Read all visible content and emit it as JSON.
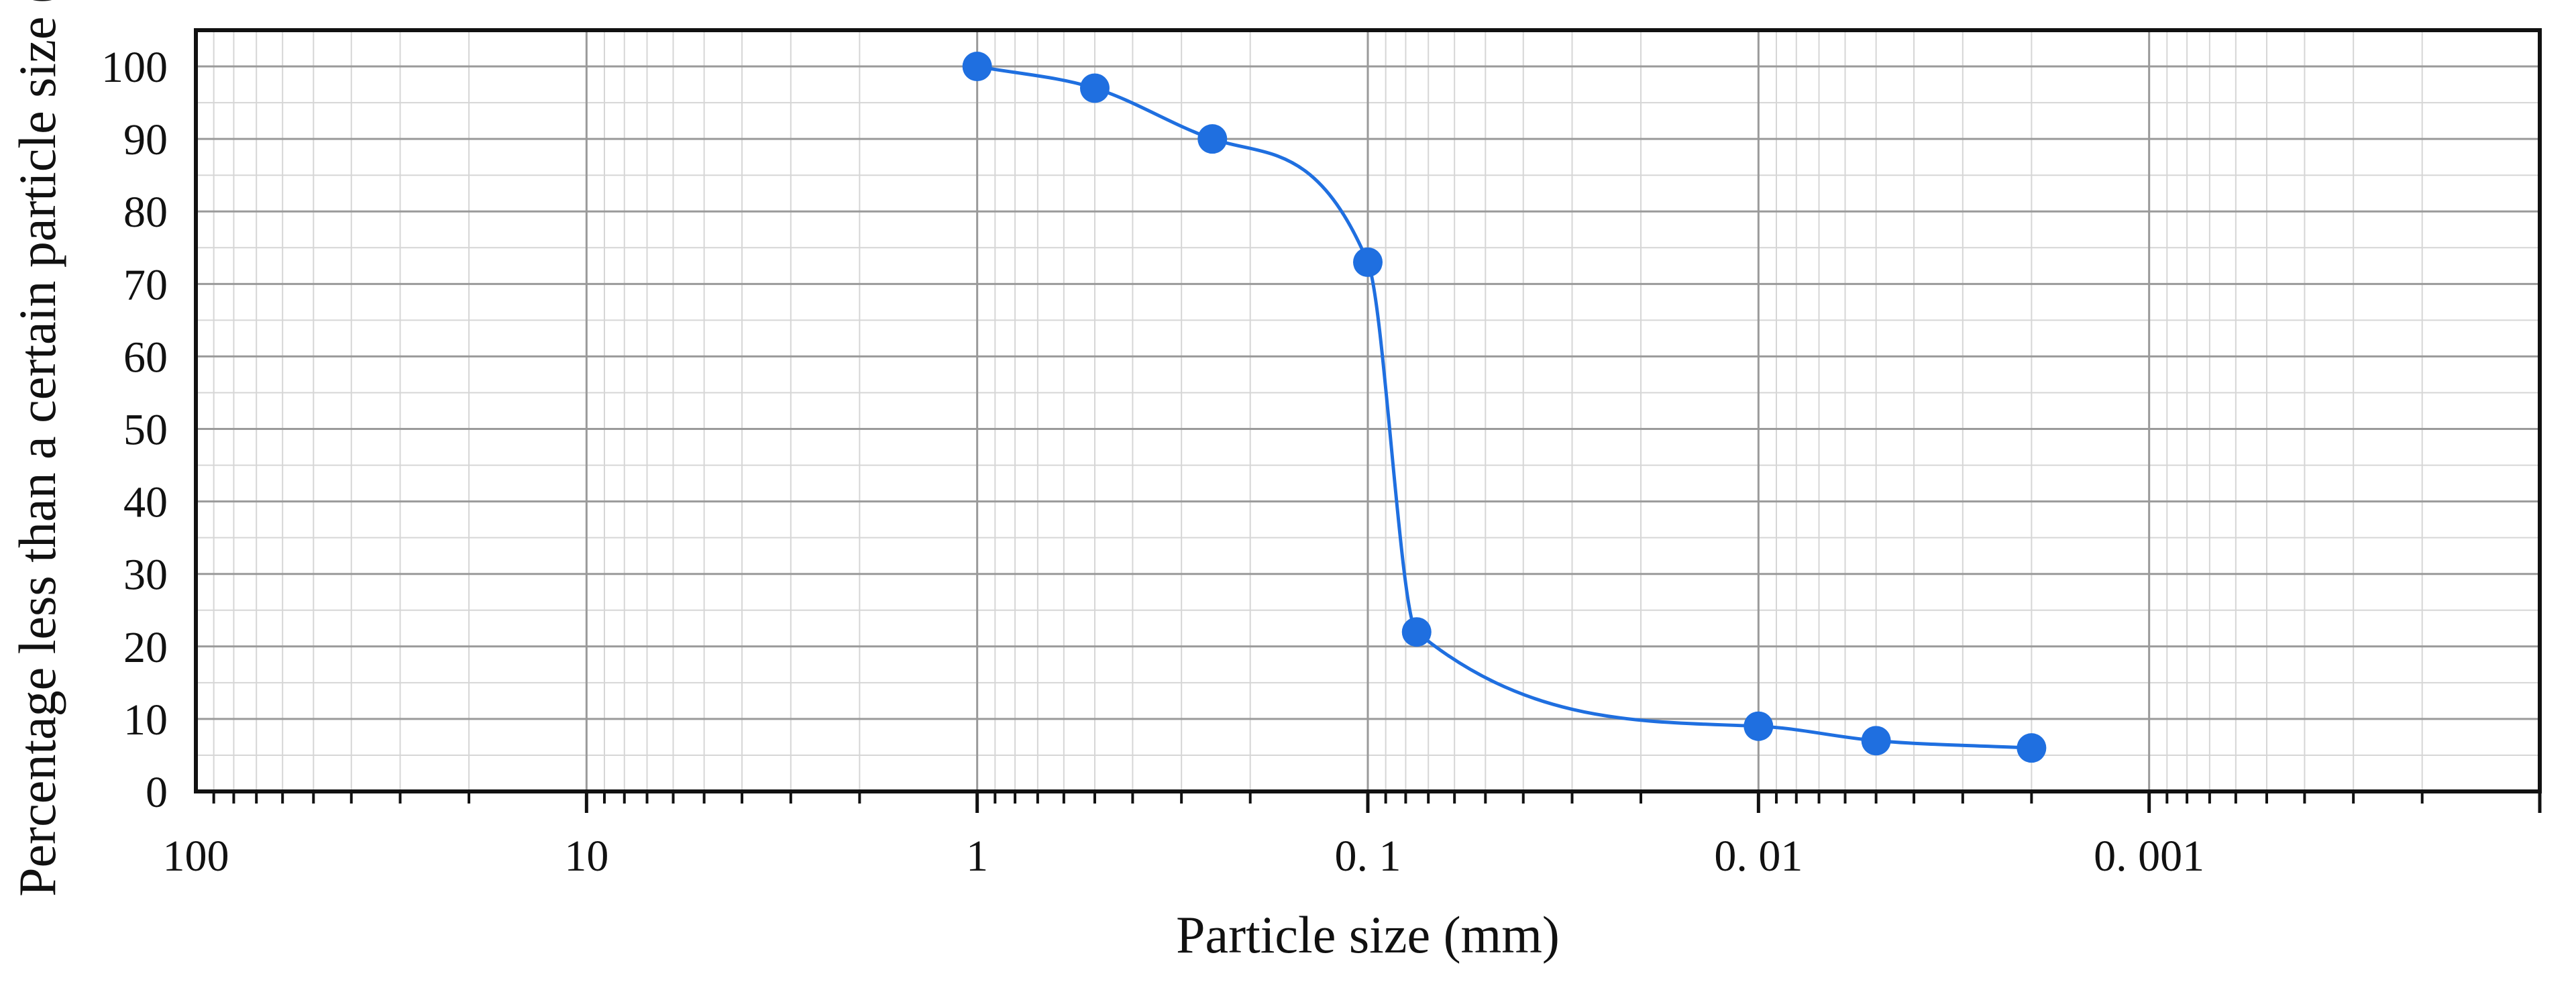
{
  "chart_data": {
    "type": "line",
    "title": "",
    "xlabel": "Particle size (mm)",
    "ylabel": "Percentage less than a certain particle size (%)",
    "x_scale": "log",
    "x_reversed": true,
    "xlim": [
      100,
      0.0001
    ],
    "ylim": [
      0,
      105
    ],
    "grid": true,
    "x_ticks": [
      {
        "value": 100,
        "label": "100"
      },
      {
        "value": 10,
        "label": "10"
      },
      {
        "value": 1,
        "label": "1"
      },
      {
        "value": 0.1,
        "label": "0. 1"
      },
      {
        "value": 0.01,
        "label": "0. 01"
      },
      {
        "value": 0.001,
        "label": "0. 001"
      }
    ],
    "y_ticks": [
      {
        "value": 0,
        "label": "0"
      },
      {
        "value": 10,
        "label": "10"
      },
      {
        "value": 20,
        "label": "20"
      },
      {
        "value": 30,
        "label": "30"
      },
      {
        "value": 40,
        "label": "40"
      },
      {
        "value": 50,
        "label": "50"
      },
      {
        "value": 60,
        "label": "60"
      },
      {
        "value": 70,
        "label": "70"
      },
      {
        "value": 80,
        "label": "80"
      },
      {
        "value": 90,
        "label": "90"
      },
      {
        "value": 100,
        "label": "100"
      }
    ],
    "series": [
      {
        "color": "#1f6fe0",
        "x": [
          1,
          0.5,
          0.25,
          0.1,
          0.075,
          0.01,
          0.005,
          0.002
        ],
        "y": [
          100,
          97,
          90,
          73,
          22,
          9,
          7,
          6
        ]
      }
    ]
  }
}
